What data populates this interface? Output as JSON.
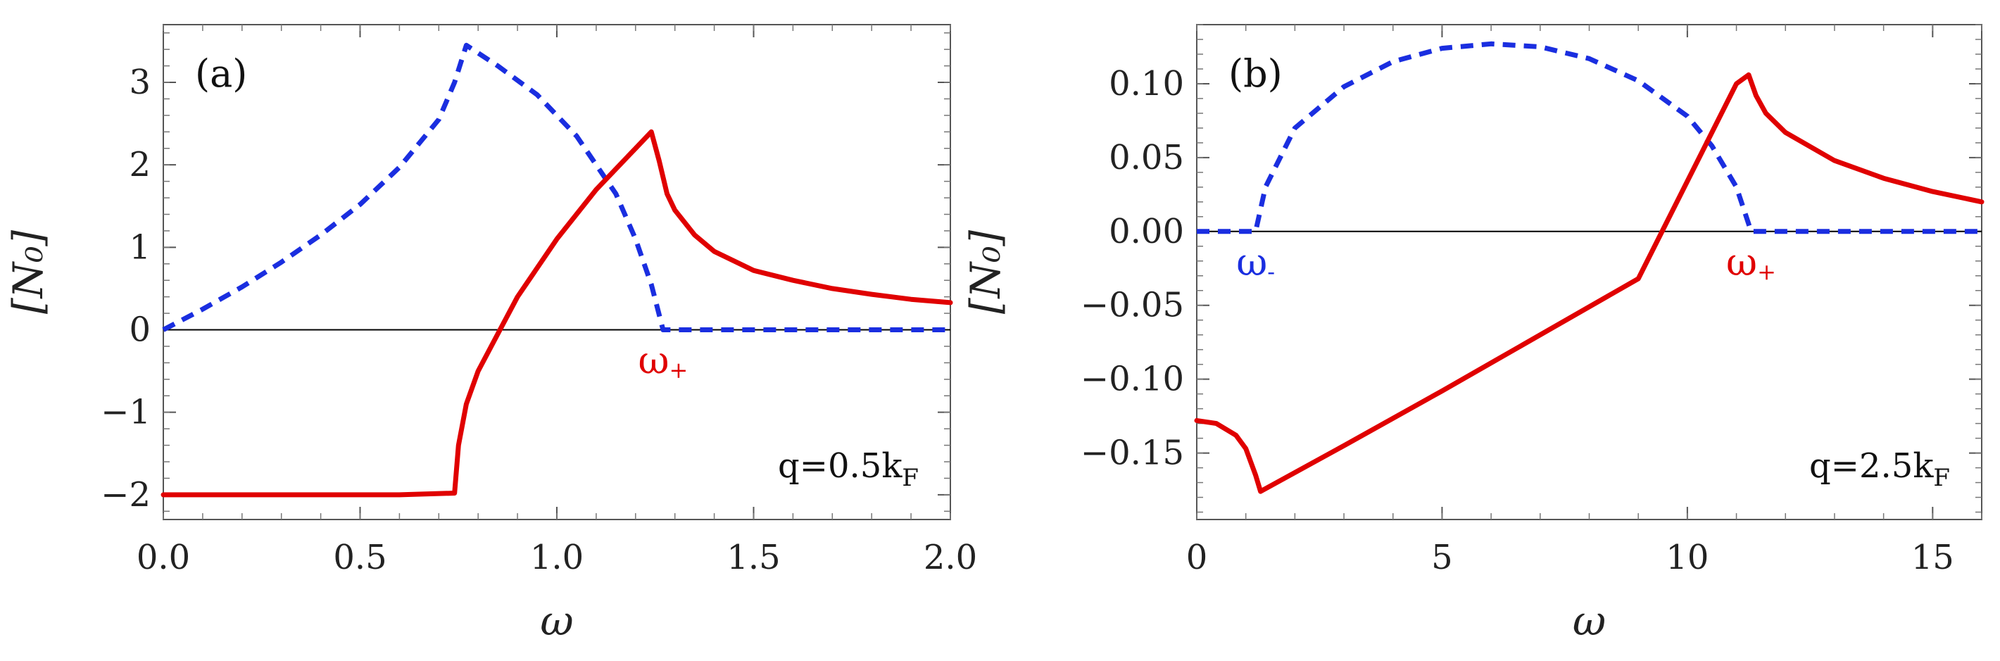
{
  "chart_data": [
    {
      "type": "line",
      "panel_label": "(a)",
      "xlabel": "ω",
      "ylabel": "[N₀]",
      "xlim": [
        0,
        2
      ],
      "ylim": [
        -2.3,
        3.7
      ],
      "x_ticks": [
        0,
        0.5,
        1,
        1.5,
        2
      ],
      "x_tick_labels": [
        "0.0",
        "0.5",
        "1.0",
        "1.5",
        "2.0"
      ],
      "y_ticks": [
        -2,
        -1,
        0,
        1,
        2,
        3
      ],
      "y_tick_labels": [
        "−2",
        "−1",
        "0",
        "1",
        "2",
        "3"
      ],
      "annotation": "q=0.5k",
      "annotation_subscript": "F",
      "markers": [
        {
          "label": "ω",
          "sup": "+",
          "x": 1.27,
          "color": "#e00000"
        }
      ],
      "series": [
        {
          "name": "red-solid",
          "color": "#e00000",
          "dash": "solid",
          "x": [
            0,
            0.6,
            0.74,
            0.75,
            0.77,
            0.8,
            0.85,
            0.9,
            1.0,
            1.1,
            1.2,
            1.24,
            1.26,
            1.28,
            1.3,
            1.35,
            1.4,
            1.5,
            1.6,
            1.7,
            1.8,
            1.9,
            2.0
          ],
          "values": [
            -2,
            -2,
            -1.98,
            -1.4,
            -0.9,
            -0.5,
            -0.05,
            0.4,
            1.1,
            1.7,
            2.2,
            2.4,
            2.05,
            1.65,
            1.45,
            1.15,
            0.95,
            0.72,
            0.6,
            0.5,
            0.43,
            0.37,
            0.33
          ]
        },
        {
          "name": "blue-dashed",
          "color": "#1a2ee0",
          "dash": "dashed",
          "x": [
            0,
            0.1,
            0.2,
            0.3,
            0.4,
            0.5,
            0.6,
            0.7,
            0.74,
            0.77,
            0.85,
            0.95,
            1.05,
            1.15,
            1.2,
            1.24,
            1.27,
            1.5,
            1.75,
            2.0
          ],
          "values": [
            0,
            0.25,
            0.52,
            0.82,
            1.15,
            1.52,
            1.97,
            2.55,
            3.0,
            3.45,
            3.2,
            2.85,
            2.35,
            1.65,
            1.1,
            0.55,
            0,
            0,
            0,
            0
          ]
        }
      ]
    },
    {
      "type": "line",
      "panel_label": "(b)",
      "xlabel": "ω",
      "ylabel": "[N₀]",
      "xlim": [
        0,
        16
      ],
      "ylim": [
        -0.195,
        0.14
      ],
      "x_ticks": [
        0,
        5,
        10,
        15
      ],
      "x_tick_labels": [
        "0",
        "5",
        "10",
        "15"
      ],
      "y_ticks": [
        -0.15,
        -0.1,
        -0.05,
        0,
        0.05,
        0.1
      ],
      "y_tick_labels": [
        "−0.15",
        "−0.10",
        "−0.05",
        "0.00",
        "0.05",
        "0.10"
      ],
      "annotation": "q=2.5k",
      "annotation_subscript": "F",
      "markers": [
        {
          "label": "ω",
          "sup": "-",
          "x": 1.2,
          "color": "#1a2ee0"
        },
        {
          "label": "ω",
          "sup": "+",
          "x": 11.3,
          "color": "#e00000"
        }
      ],
      "series": [
        {
          "name": "red-solid",
          "color": "#e00000",
          "dash": "solid",
          "x": [
            0,
            0.4,
            0.8,
            1.0,
            1.2,
            1.3,
            3,
            5,
            7,
            9,
            11,
            11.25,
            11.4,
            11.6,
            12,
            13,
            14,
            15,
            16
          ],
          "values": [
            -0.128,
            -0.13,
            -0.138,
            -0.147,
            -0.165,
            -0.176,
            -0.145,
            -0.108,
            -0.07,
            -0.032,
            0.1,
            0.106,
            0.092,
            0.08,
            0.067,
            0.048,
            0.036,
            0.027,
            0.02
          ]
        },
        {
          "name": "blue-dashed",
          "color": "#1a2ee0",
          "dash": "dashed",
          "x": [
            0,
            1.2,
            1.4,
            2,
            3,
            4,
            5,
            6,
            7,
            8,
            9,
            10,
            10.5,
            11,
            11.3,
            12,
            13,
            14,
            16
          ],
          "values": [
            0,
            0,
            0.03,
            0.07,
            0.098,
            0.115,
            0.124,
            0.127,
            0.125,
            0.117,
            0.102,
            0.078,
            0.058,
            0.03,
            0,
            0,
            0,
            0,
            0
          ]
        }
      ]
    }
  ]
}
